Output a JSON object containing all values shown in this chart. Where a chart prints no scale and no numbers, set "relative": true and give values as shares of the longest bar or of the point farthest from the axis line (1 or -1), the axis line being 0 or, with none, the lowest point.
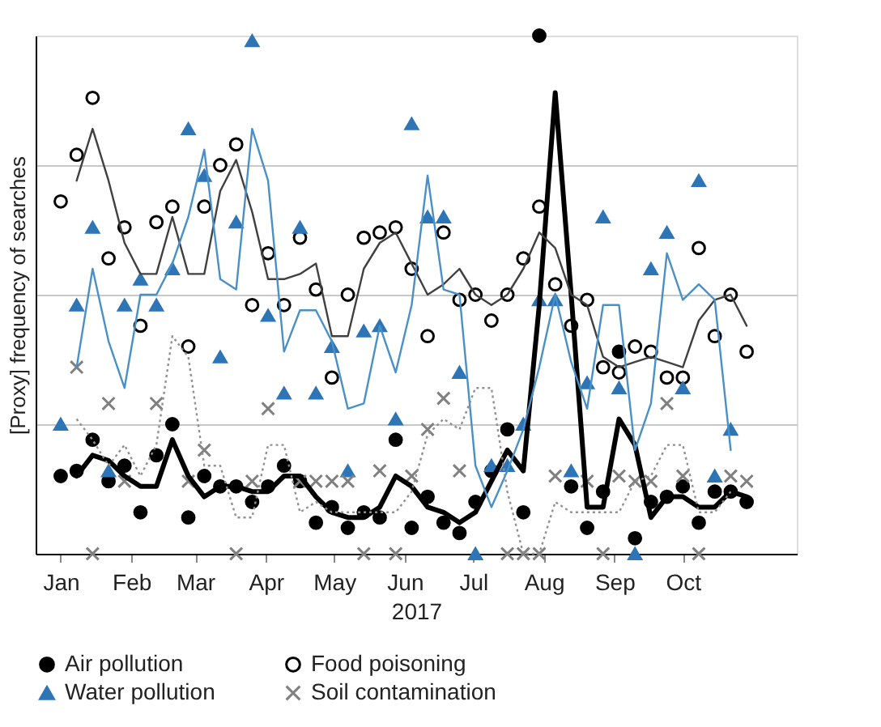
{
  "chart_data": {
    "type": "scatter",
    "xlabel": "2017",
    "ylabel": "[Proxy] frequency of searches",
    "relative": true,
    "grid": "y",
    "legend": "bottom",
    "x": [
      "2017-01-01",
      "2017-01-08",
      "2017-01-15",
      "2017-01-22",
      "2017-01-29",
      "2017-02-05",
      "2017-02-12",
      "2017-02-19",
      "2017-02-26",
      "2017-03-05",
      "2017-03-12",
      "2017-03-19",
      "2017-03-26",
      "2017-04-02",
      "2017-04-09",
      "2017-04-16",
      "2017-04-23",
      "2017-04-30",
      "2017-05-07",
      "2017-05-14",
      "2017-05-21",
      "2017-05-28",
      "2017-06-04",
      "2017-06-11",
      "2017-06-18",
      "2017-06-25",
      "2017-07-02",
      "2017-07-09",
      "2017-07-16",
      "2017-07-23",
      "2017-07-30",
      "2017-08-06",
      "2017-08-13",
      "2017-08-20",
      "2017-08-27",
      "2017-09-03",
      "2017-09-10",
      "2017-09-17",
      "2017-09-24",
      "2017-10-01",
      "2017-10-08",
      "2017-10-15",
      "2017-10-22",
      "2017-10-29"
    ],
    "xlim": [
      "2016-12-21",
      "2017-11-20"
    ],
    "xticks": [
      {
        "value": "2017-01-01",
        "label": "Jan"
      },
      {
        "value": "2017-02-01",
        "label": "Feb"
      },
      {
        "value": "2017-03-01",
        "label": "Mar"
      },
      {
        "value": "2017-04-01",
        "label": "Apr"
      },
      {
        "value": "2017-05-01",
        "label": "May"
      },
      {
        "value": "2017-06-01",
        "label": "Jun"
      },
      {
        "value": "2017-07-01",
        "label": "Jul"
      },
      {
        "value": "2017-08-01",
        "label": "Aug"
      },
      {
        "value": "2017-09-01",
        "label": "Sep"
      },
      {
        "value": "2017-10-01",
        "label": "Oct"
      }
    ],
    "series": [
      {
        "name": "Air pollution",
        "marker": "circle",
        "color": "#000000",
        "values": [
          0.15,
          0.16,
          0.22,
          0.14,
          0.17,
          0.08,
          0.19,
          0.25,
          0.07,
          0.15,
          0.13,
          0.13,
          0.1,
          0.13,
          0.17,
          0.14,
          0.06,
          0.09,
          0.05,
          0.08,
          0.07,
          0.22,
          0.05,
          0.11,
          0.06,
          0.04,
          0.1,
          0.16,
          0.24,
          0.08,
          1.0,
          null,
          0.13,
          0.05,
          0.12,
          0.39,
          0.03,
          0.1,
          0.11,
          0.13,
          0.06,
          0.12,
          0.12,
          0.1
        ]
      },
      {
        "name": "Food poisoning",
        "marker": "circle",
        "color": "#000000",
        "values": [
          0.68,
          0.77,
          0.88,
          0.57,
          0.63,
          0.44,
          0.64,
          0.67,
          0.4,
          0.67,
          0.75,
          0.79,
          0.48,
          0.58,
          0.48,
          0.61,
          0.51,
          0.34,
          0.5,
          0.61,
          0.62,
          0.63,
          0.55,
          0.42,
          0.62,
          0.49,
          0.5,
          0.45,
          0.5,
          0.57,
          0.67,
          0.52,
          0.44,
          0.49,
          0.36,
          0.35,
          0.4,
          0.39,
          0.34,
          0.34,
          0.59,
          0.42,
          0.5,
          0.39
        ]
      },
      {
        "name": "Water pollution",
        "marker": "triangle",
        "color": "#2e75b6",
        "values": [
          0.25,
          0.48,
          0.63,
          0.16,
          0.48,
          0.53,
          0.48,
          0.55,
          0.82,
          0.73,
          0.38,
          0.64,
          0.99,
          0.46,
          0.31,
          0.63,
          0.31,
          0.4,
          0.16,
          0.43,
          0.44,
          0.26,
          0.83,
          0.65,
          0.65,
          0.35,
          0,
          0.17,
          0.17,
          0.25,
          0.49,
          0.49,
          0.16,
          0.33,
          0.65,
          0.32,
          0,
          0.55,
          0.62,
          0.32,
          0.72,
          0.15,
          0.24,
          null
        ]
      },
      {
        "name": "Soil contamination",
        "marker": "cross",
        "color": "#808080",
        "values": [
          null,
          0.36,
          0,
          0.29,
          0.14,
          null,
          0.29,
          null,
          0.14,
          0.2,
          null,
          0,
          0.14,
          0.28,
          null,
          0.14,
          0.14,
          0.14,
          0.14,
          0,
          0.16,
          0,
          0.15,
          0.24,
          0.3,
          0.16,
          null,
          null,
          0,
          0,
          0,
          0.15,
          null,
          0.14,
          0,
          0.15,
          0.14,
          0.14,
          0.29,
          0.15,
          0,
          null,
          0.15,
          0.14
        ]
      },
      {
        "type": "line",
        "color": "#000000",
        "line_style": "solid",
        "values": [
          null,
          0.15,
          0.19,
          0.18,
          0.15,
          0.13,
          0.13,
          0.22,
          0.15,
          0.11,
          0.13,
          0.13,
          0.12,
          0.12,
          0.15,
          0.15,
          0.11,
          0.08,
          0.07,
          0.07,
          0.09,
          0.15,
          0.13,
          0.09,
          0.08,
          0.06,
          0.08,
          0.14,
          0.2,
          0.16,
          0.48,
          0.89,
          0.5,
          0.09,
          0.09,
          0.26,
          0.21,
          0.07,
          0.11,
          0.11,
          0.09,
          0.09,
          0.12,
          0.11
        ]
      },
      {
        "type": "line",
        "color": "#404040",
        "line_style": "solid",
        "values": [
          null,
          0.72,
          0.82,
          0.72,
          0.6,
          0.54,
          0.54,
          0.65,
          0.54,
          0.54,
          0.7,
          0.76,
          0.66,
          0.53,
          0.53,
          0.54,
          0.56,
          0.42,
          0.42,
          0.55,
          0.6,
          0.62,
          0.56,
          0.5,
          0.52,
          0.55,
          0.5,
          0.48,
          0.5,
          0.55,
          0.62,
          0.59,
          0.5,
          0.48,
          0.38,
          0.36,
          0.37,
          0.38,
          0.37,
          0.36,
          0.45,
          0.49,
          0.5,
          0.44
        ]
      },
      {
        "type": "line",
        "color": "#4a90c8",
        "line_style": "solid",
        "values": [
          null,
          0.36,
          0.55,
          0.41,
          0.32,
          0.5,
          0.5,
          0.56,
          0.65,
          0.78,
          0.53,
          0.51,
          0.82,
          0.72,
          0.39,
          0.47,
          0.47,
          0.41,
          0.28,
          0.29,
          0.44,
          0.35,
          0.48,
          0.73,
          0.51,
          0.5,
          0.17,
          0.09,
          0.16,
          0.24,
          0.36,
          0.5,
          0.37,
          0.28,
          0.48,
          0.48,
          0.2,
          0.29,
          0.58,
          0.49,
          0.52,
          0.49,
          0.2,
          null
        ]
      },
      {
        "type": "line",
        "color": "#909090",
        "line_style": "dotted",
        "values": [
          null,
          0.26,
          0.22,
          0.17,
          0.21,
          0.15,
          0.21,
          0.42,
          0.38,
          0.17,
          0.17,
          0.07,
          0.07,
          0.21,
          0.21,
          0.08,
          0.1,
          0.08,
          0.08,
          0.08,
          0.08,
          0.08,
          0.12,
          0.23,
          0.26,
          0.24,
          0.32,
          0.32,
          0.12,
          0,
          0,
          0.1,
          0.08,
          0.08,
          0.08,
          0.08,
          0.14,
          0.15,
          0.21,
          0.21,
          0.08,
          0.08,
          0.12,
          null
        ]
      }
    ]
  }
}
